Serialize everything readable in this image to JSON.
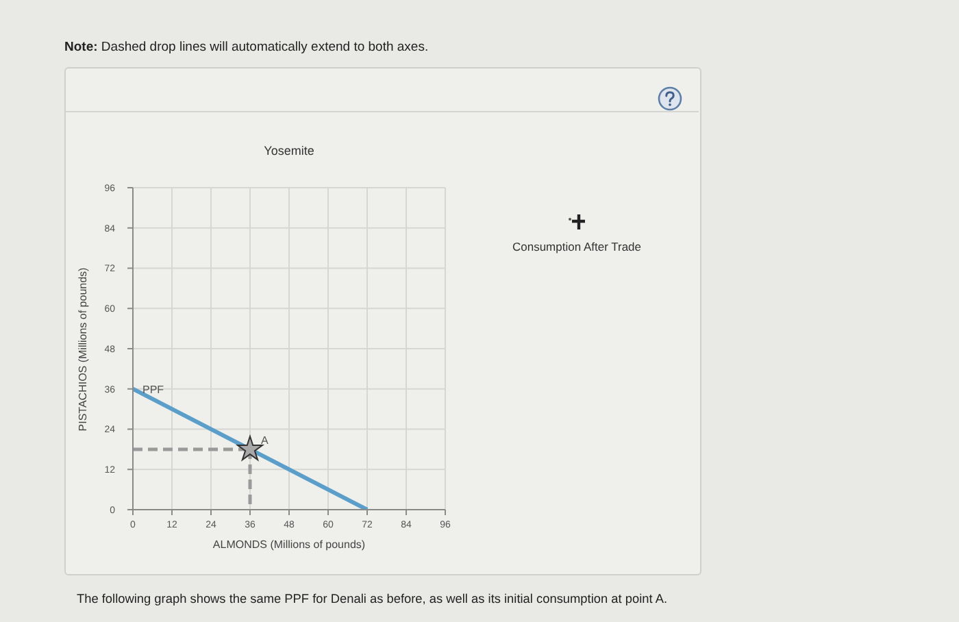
{
  "chart_data": {
    "type": "line",
    "title": "Yosemite",
    "xlabel": "ALMONDS (Millions of pounds)",
    "ylabel": "PISTACHIOS (Millions of pounds)",
    "annotations": [
      "Note: Dashed drop lines will automatically extend to both axes.",
      "The following graph shows the same PPF for Denali as before, as well as its initial consumption at point A.",
      "Consumption After Trade"
    ],
    "series": [
      {
        "color": "#9a9a9a",
        "line_style": "dashed",
        "x": [
          0,
          36
        ],
        "values": [
          18,
          18
        ]
      },
      {
        "color": "#9a9a9a",
        "line_style": "dashed",
        "x": [
          36,
          36
        ],
        "values": [
          18,
          0
        ]
      },
      {
        "name": "PPF",
        "color": "#5b9ec9",
        "x": [
          0,
          72
        ],
        "values": [
          36,
          0
        ]
      },
      {
        "type": "scatter",
        "name": "A",
        "color": "#a8a8a8",
        "marker": "star",
        "x": [
          36
        ],
        "values": [
          18
        ]
      }
    ],
    "xlim": [
      0,
      96
    ],
    "ylim": [
      0,
      96
    ],
    "xticks": [
      0,
      12,
      24,
      36,
      48,
      60,
      72,
      84,
      96
    ],
    "yticks": [
      0,
      12,
      24,
      36,
      48,
      60,
      72,
      84,
      96
    ],
    "grid": true,
    "marker": "none"
  }
}
